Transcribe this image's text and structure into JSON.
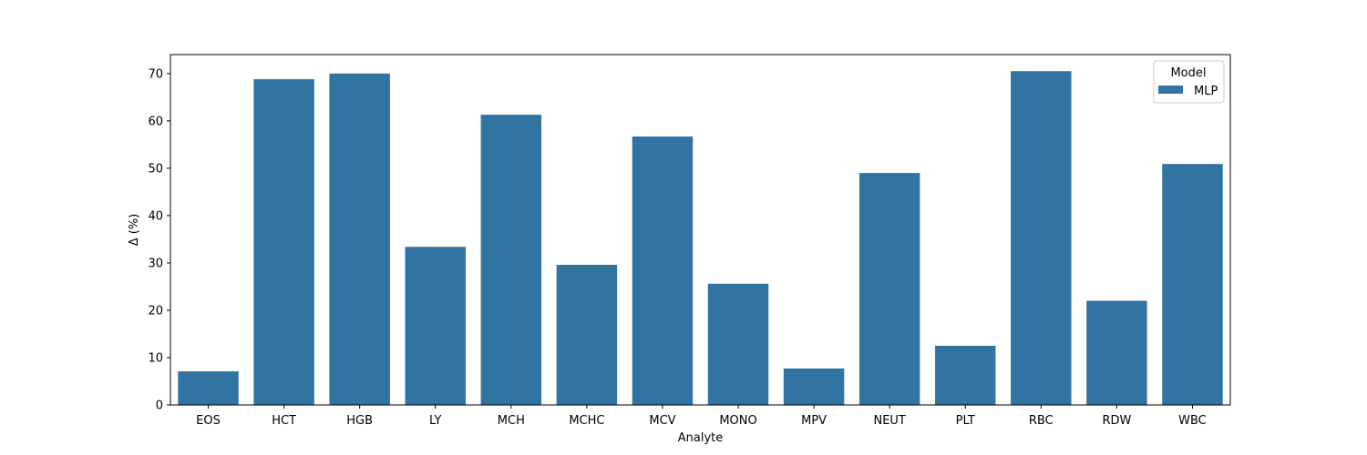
{
  "chart_data": {
    "type": "bar",
    "categories": [
      "EOS",
      "HCT",
      "HGB",
      "LY",
      "MCH",
      "MCHC",
      "MCV",
      "MONO",
      "MPV",
      "NEUT",
      "PLT",
      "RBC",
      "RDW",
      "WBC"
    ],
    "series": [
      {
        "name": "MLP",
        "color": "#3274a1",
        "values": [
          7.1,
          68.8,
          70.0,
          33.4,
          61.3,
          29.6,
          56.7,
          25.6,
          7.7,
          49.0,
          12.5,
          70.5,
          22.0,
          50.9
        ]
      }
    ],
    "xlabel": "Analyte",
    "ylabel": "Δ (%)",
    "ylim": [
      0,
      74
    ],
    "yticks": [
      0,
      10,
      20,
      30,
      40,
      50,
      60,
      70
    ],
    "grid": false,
    "legend": {
      "title": "Model",
      "placement": "top-right"
    }
  }
}
